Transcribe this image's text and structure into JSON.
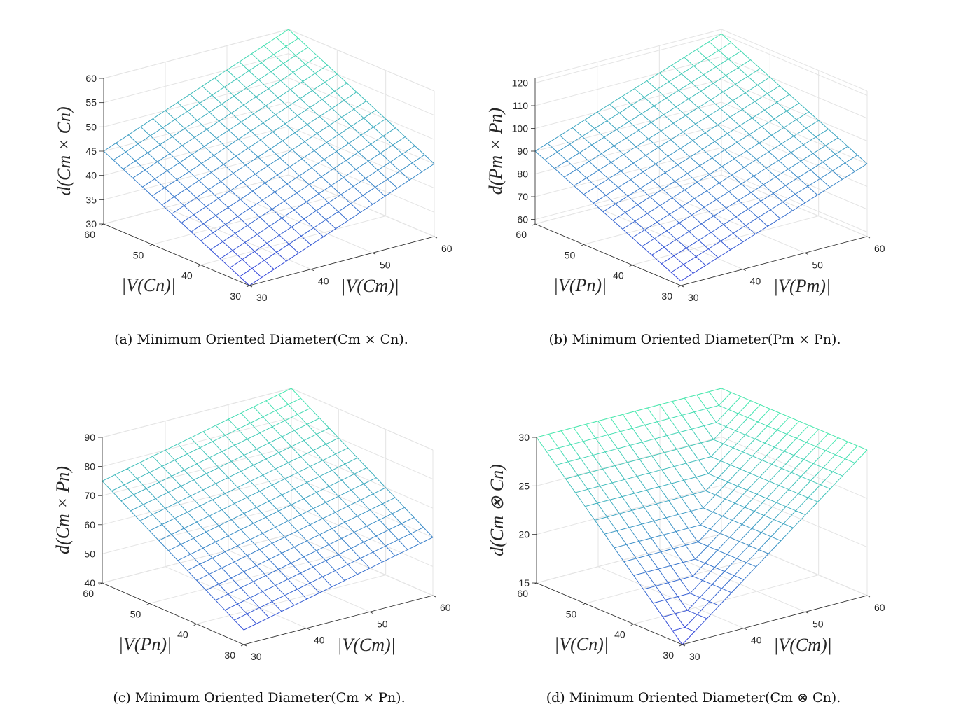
{
  "chart_data": [
    {
      "type": "surface",
      "panel": "a",
      "caption": "(a) Minimum Oriented Diameter(Cm × Cn).",
      "xlabel": "|V(Cm)|",
      "ylabel": "|V(Cn)|",
      "zlabel": "d(Cm × Cn)",
      "xlim": [
        30,
        60
      ],
      "ylim": [
        30,
        60
      ],
      "zlim": [
        30,
        60
      ],
      "xticks": [
        "30",
        "40",
        "50",
        "60"
      ],
      "yticks": [
        "30",
        "40",
        "50",
        "60"
      ],
      "zticks": [
        "30",
        "35",
        "40",
        "45",
        "50",
        "55",
        "60"
      ],
      "grid_steps": 15,
      "formula": "(m + n) / 2",
      "colormap": "winter"
    },
    {
      "type": "surface",
      "panel": "b",
      "caption": "(b) Minimum Oriented Diameter(Pm × Pn).",
      "xlabel": "|V(Pm)|",
      "ylabel": "|V(Pn)|",
      "zlabel": "d(Pm × Pn)",
      "xlim": [
        30,
        60
      ],
      "ylim": [
        30,
        60
      ],
      "zlim": [
        58,
        122
      ],
      "xticks": [
        "30",
        "40",
        "50",
        "60"
      ],
      "yticks": [
        "30",
        "40",
        "50",
        "60"
      ],
      "zticks": [
        "60",
        "70",
        "80",
        "90",
        "100",
        "110",
        "120"
      ],
      "grid_steps": 15,
      "formula": "m + n",
      "colormap": "winter"
    },
    {
      "type": "surface",
      "panel": "c",
      "caption": "(c) Minimum Oriented Diameter(Cm × Pn).",
      "xlabel": "|V(Cm)|",
      "ylabel": "|V(Pn)|",
      "zlabel": "d(Cm × Pn)",
      "xlim": [
        30,
        60
      ],
      "ylim": [
        30,
        60
      ],
      "zlim": [
        40,
        90
      ],
      "xticks": [
        "30",
        "40",
        "50",
        "60"
      ],
      "yticks": [
        "30",
        "40",
        "50",
        "60"
      ],
      "zticks": [
        "40",
        "50",
        "60",
        "70",
        "80",
        "90"
      ],
      "grid_steps": 15,
      "formula": "m / 2 + n",
      "colormap": "winter"
    },
    {
      "type": "surface",
      "panel": "d",
      "caption": "(d) Minimum Oriented Diameter(Cm ⊗ Cn).",
      "xlabel": "|V(Cm)|",
      "ylabel": "|V(Cn)|",
      "zlabel": "d(Cm ⊗ Cn)",
      "xlim": [
        30,
        60
      ],
      "ylim": [
        30,
        60
      ],
      "zlim": [
        15,
        30
      ],
      "xticks": [
        "30",
        "40",
        "50",
        "60"
      ],
      "yticks": [
        "30",
        "40",
        "50",
        "60"
      ],
      "zticks": [
        "15",
        "20",
        "25",
        "30"
      ],
      "grid_steps": 15,
      "formula": "max(m, n) / 2",
      "colormap": "winter"
    }
  ]
}
